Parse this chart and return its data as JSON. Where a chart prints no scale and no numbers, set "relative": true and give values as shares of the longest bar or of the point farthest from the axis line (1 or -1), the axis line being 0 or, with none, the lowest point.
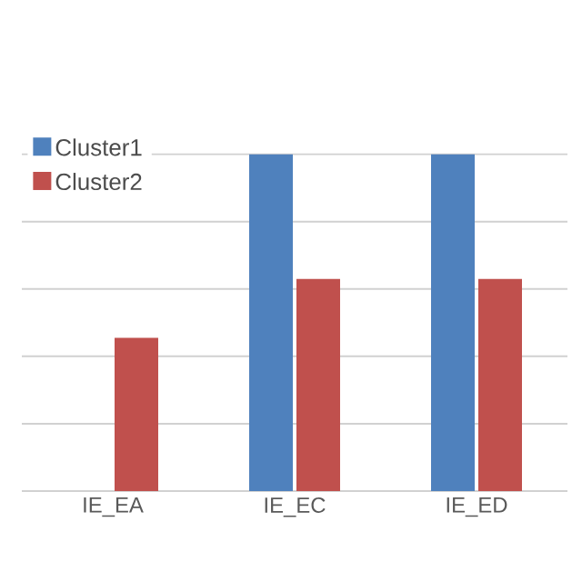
{
  "chart_data": {
    "type": "bar",
    "relative": true,
    "categories": [
      "IE_EA",
      "IE_EC",
      "IE_ED"
    ],
    "series": [
      {
        "name": "Cluster1",
        "color": "#4f81bd",
        "values": [
          null,
          1.0,
          1.0
        ]
      },
      {
        "name": "Cluster2",
        "color": "#c0504d",
        "values": [
          0.455,
          0.63,
          0.63
        ]
      }
    ],
    "grid": "y",
    "legend": "top left"
  }
}
